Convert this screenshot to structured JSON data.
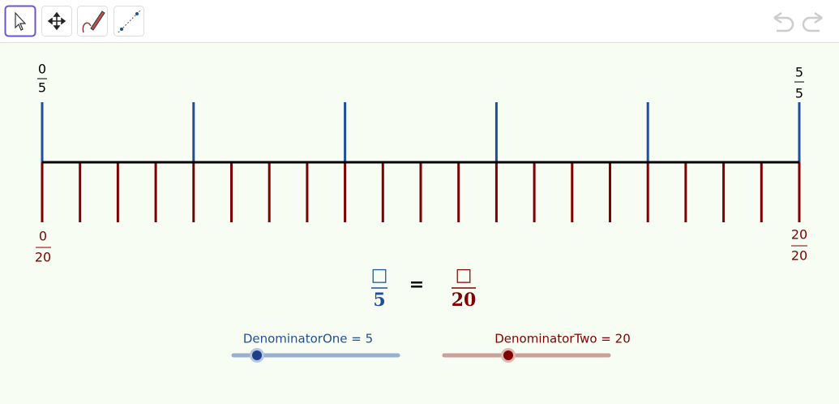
{
  "number_line": {
    "denominator_one": 5,
    "denominator_two": 20,
    "top_labels": [
      {
        "num": "0",
        "den": "5"
      },
      {
        "num": "5",
        "den": "5"
      }
    ],
    "bottom_labels": [
      {
        "num": "0",
        "den": "20"
      },
      {
        "num": "20",
        "den": "20"
      }
    ]
  },
  "equation": {
    "left": {
      "num": "□",
      "den": "5"
    },
    "sign": "=",
    "right": {
      "num": "□",
      "den": "20"
    }
  },
  "sliders": [
    {
      "label": "DenominatorOne = 5"
    },
    {
      "label": "DenominatorTwo = 20"
    }
  ]
}
